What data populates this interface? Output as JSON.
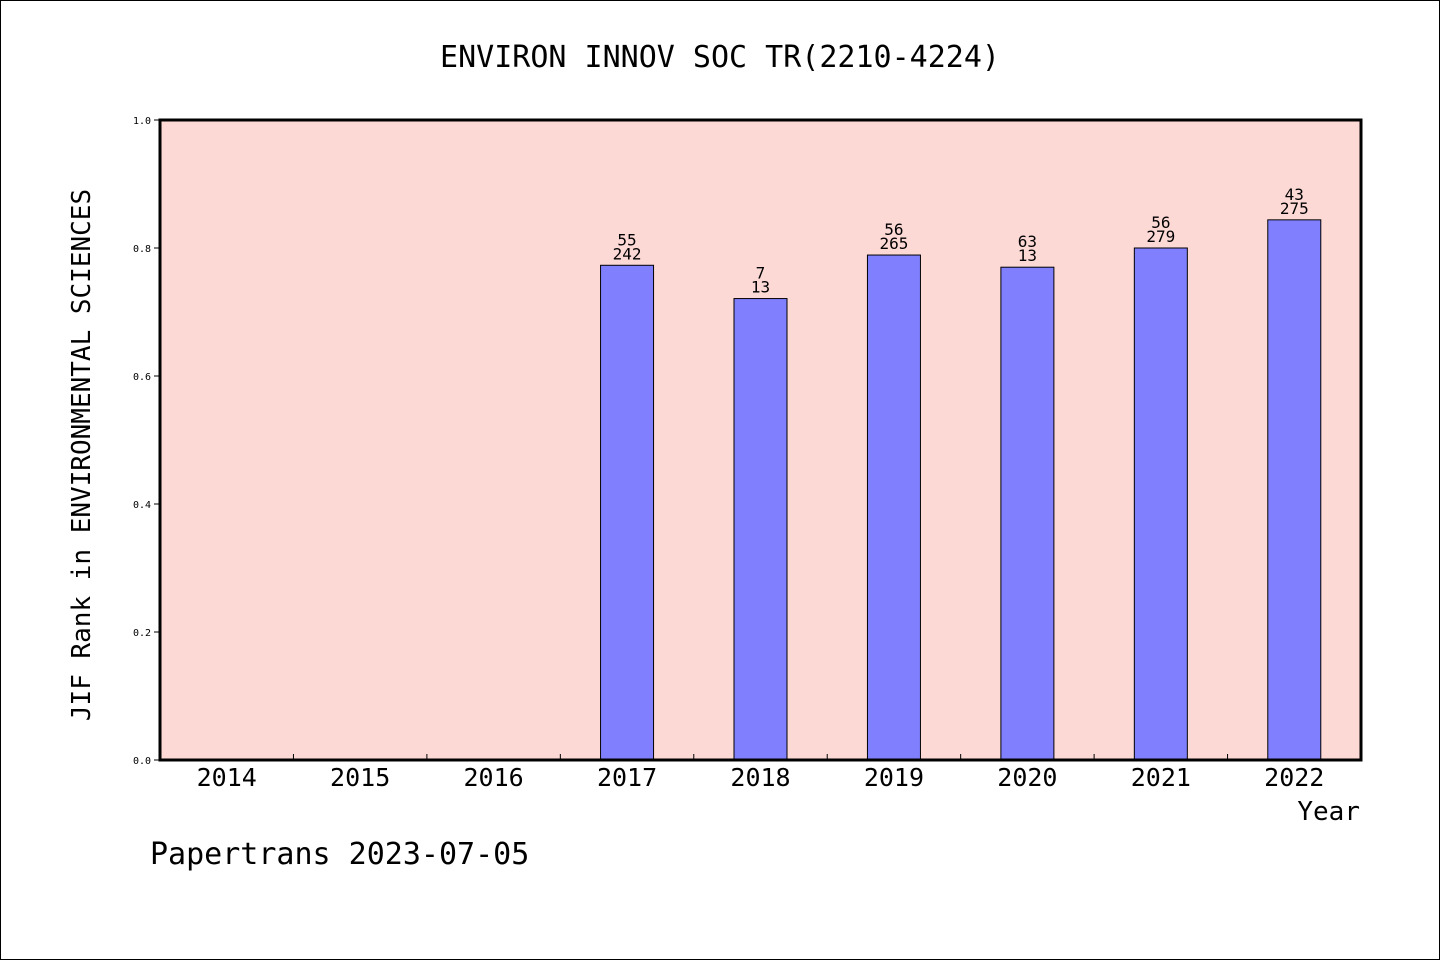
{
  "chart_data": {
    "type": "bar",
    "title": "ENVIRON INNOV SOC TR(2210-4224)",
    "xlabel": "Year",
    "ylabel": "JIF Rank in ENVIRONMENTAL SCIENCES",
    "ylim": [
      0,
      1.0
    ],
    "yticks": [
      "0.0",
      "0.2",
      "0.4",
      "0.6",
      "0.8",
      "1.0"
    ],
    "categories": [
      "2014",
      "2015",
      "2016",
      "2017",
      "2018",
      "2019",
      "2020",
      "2021",
      "2022"
    ],
    "values": [
      null,
      null,
      null,
      0.773,
      0.721,
      0.789,
      0.77,
      0.8,
      0.844
    ],
    "labels_top": [
      "",
      "",
      "",
      "55",
      "7",
      "56",
      "63",
      "56",
      "43"
    ],
    "labels_bottom": [
      "",
      "",
      "",
      "242",
      "13",
      "265",
      "13",
      "279",
      "275"
    ],
    "grid": false,
    "plot_background": "#fdd9d6",
    "bar_color": "#8080ff"
  },
  "footer": "Papertrans 2023-07-05"
}
